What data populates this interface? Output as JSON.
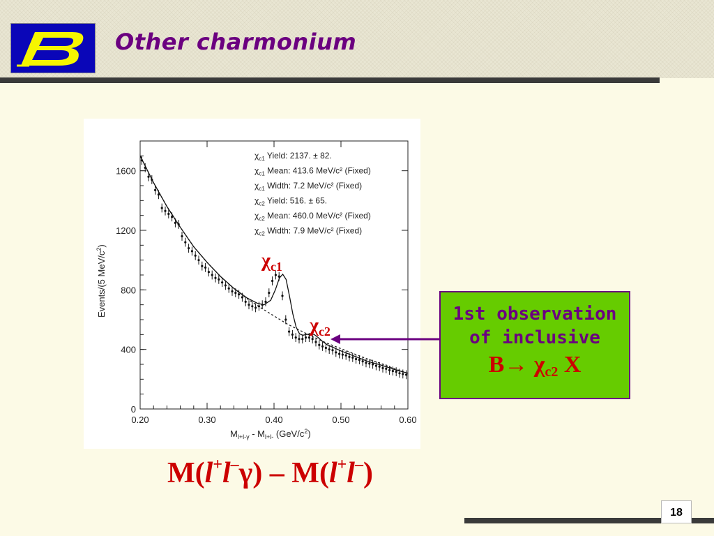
{
  "slide": {
    "title": "Other charmonium",
    "page_number": "18",
    "formula": "M(l+l−γ) – M(l+l−)",
    "callout": {
      "line1": "1st observation",
      "line2": "of inclusive",
      "line3_main": "B→ χ",
      "line3_sub": "c2",
      "line3_tail": " X"
    },
    "colors": {
      "title": "#6b0080",
      "callout_bg": "#66cc00",
      "callout_text": "#6b0080",
      "accent_red": "#cc0000",
      "logo_bg": "#0a06b8",
      "logo_letter": "#f5f500"
    },
    "logo_icon": "belle-b-logo"
  },
  "chart_data": {
    "type": "scatter",
    "xlabel": "M",
    "xlabel_sub1": "l+l-γ",
    "xlabel_mid": " - M",
    "xlabel_sub2": "l+l-",
    "xlabel_unit": " (GeV/c",
    "xlabel_unit_sup": "2",
    "xlabel_end": ")",
    "ylabel": "Events/(5 MeV/c",
    "ylabel_sup": "2",
    "ylabel_end": ")",
    "xlim": [
      0.2,
      0.6
    ],
    "ylim": [
      0,
      1800
    ],
    "xticks": [
      "0.20",
      "0.30",
      "0.40",
      "0.50",
      "0.60"
    ],
    "yticks": [
      "0",
      "400",
      "800",
      "1200",
      "1600"
    ],
    "peak_labels": [
      {
        "main": "χ",
        "sub": "c1",
        "x": 0.413
      },
      {
        "main": "χ",
        "sub": "c2",
        "x": 0.46
      }
    ],
    "stats": [
      {
        "label": "χ",
        "sub": "c1",
        "text": "Yield: 2137. ±  82."
      },
      {
        "label": "χ",
        "sub": "c1",
        "text": "Mean: 413.6 MeV/c² (Fixed)"
      },
      {
        "label": "χ",
        "sub": "c1",
        "text": "Width:   7.2 MeV/c² (Fixed)"
      },
      {
        "label": "χ",
        "sub": "c2",
        "text": "Yield:  516. ±  65."
      },
      {
        "label": "χ",
        "sub": "c2",
        "text": "Mean: 460.0 MeV/c² (Fixed)"
      },
      {
        "label": "χ",
        "sub": "c2",
        "text": "Width:   7.9 MeV/c² (Fixed)"
      }
    ],
    "x": [
      0.2025,
      0.2075,
      0.2125,
      0.2175,
      0.2225,
      0.2275,
      0.2325,
      0.2375,
      0.2425,
      0.2475,
      0.2525,
      0.2575,
      0.2625,
      0.2675,
      0.2725,
      0.2775,
      0.2825,
      0.2875,
      0.2925,
      0.2975,
      0.3025,
      0.3075,
      0.3125,
      0.3175,
      0.3225,
      0.3275,
      0.3325,
      0.3375,
      0.3425,
      0.3475,
      0.3525,
      0.3575,
      0.3625,
      0.3675,
      0.3725,
      0.3775,
      0.3825,
      0.3875,
      0.3925,
      0.3975,
      0.4025,
      0.4075,
      0.4125,
      0.4175,
      0.4225,
      0.4275,
      0.4325,
      0.4375,
      0.4425,
      0.4475,
      0.4525,
      0.4575,
      0.4625,
      0.4675,
      0.4725,
      0.4775,
      0.4825,
      0.4875,
      0.4925,
      0.4975,
      0.5025,
      0.5075,
      0.5125,
      0.5175,
      0.5225,
      0.5275,
      0.5325,
      0.5375,
      0.5425,
      0.5475,
      0.5525,
      0.5575,
      0.5625,
      0.5675,
      0.5725,
      0.5775,
      0.5825,
      0.5875,
      0.5925,
      0.5975
    ],
    "y": [
      1670,
      1620,
      1560,
      1540,
      1470,
      1440,
      1350,
      1330,
      1310,
      1290,
      1250,
      1240,
      1160,
      1120,
      1080,
      1060,
      1030,
      1000,
      960,
      950,
      920,
      900,
      880,
      870,
      850,
      830,
      810,
      790,
      780,
      770,
      750,
      720,
      700,
      690,
      680,
      690,
      700,
      720,
      780,
      860,
      900,
      890,
      760,
      600,
      520,
      500,
      480,
      470,
      470,
      480,
      480,
      470,
      450,
      430,
      420,
      410,
      400,
      395,
      380,
      370,
      365,
      360,
      350,
      345,
      335,
      330,
      320,
      310,
      305,
      300,
      290,
      285,
      275,
      270,
      260,
      255,
      250,
      240,
      235,
      230
    ],
    "errors": 30,
    "fit_total": [
      [
        0.2,
        1700
      ],
      [
        0.22,
        1520
      ],
      [
        0.24,
        1360
      ],
      [
        0.26,
        1220
      ],
      [
        0.28,
        1090
      ],
      [
        0.3,
        985
      ],
      [
        0.32,
        890
      ],
      [
        0.34,
        810
      ],
      [
        0.36,
        745
      ],
      [
        0.375,
        710
      ],
      [
        0.385,
        700
      ],
      [
        0.395,
        730
      ],
      [
        0.402,
        800
      ],
      [
        0.408,
        880
      ],
      [
        0.413,
        905
      ],
      [
        0.418,
        870
      ],
      [
        0.423,
        760
      ],
      [
        0.428,
        640
      ],
      [
        0.433,
        550
      ],
      [
        0.438,
        505
      ],
      [
        0.443,
        495
      ],
      [
        0.448,
        500
      ],
      [
        0.455,
        505
      ],
      [
        0.46,
        500
      ],
      [
        0.466,
        480
      ],
      [
        0.472,
        455
      ],
      [
        0.48,
        430
      ],
      [
        0.49,
        410
      ],
      [
        0.5,
        390
      ],
      [
        0.52,
        355
      ],
      [
        0.54,
        320
      ],
      [
        0.56,
        295
      ],
      [
        0.58,
        265
      ],
      [
        0.6,
        240
      ]
    ],
    "fit_background": [
      [
        0.2,
        1700
      ],
      [
        0.22,
        1520
      ],
      [
        0.24,
        1360
      ],
      [
        0.26,
        1220
      ],
      [
        0.28,
        1090
      ],
      [
        0.3,
        985
      ],
      [
        0.32,
        890
      ],
      [
        0.34,
        810
      ],
      [
        0.36,
        740
      ],
      [
        0.38,
        680
      ],
      [
        0.4,
        625
      ],
      [
        0.42,
        570
      ],
      [
        0.44,
        525
      ],
      [
        0.46,
        480
      ],
      [
        0.48,
        440
      ],
      [
        0.5,
        405
      ],
      [
        0.52,
        370
      ],
      [
        0.54,
        335
      ],
      [
        0.56,
        305
      ],
      [
        0.58,
        270
      ],
      [
        0.6,
        240
      ]
    ]
  }
}
